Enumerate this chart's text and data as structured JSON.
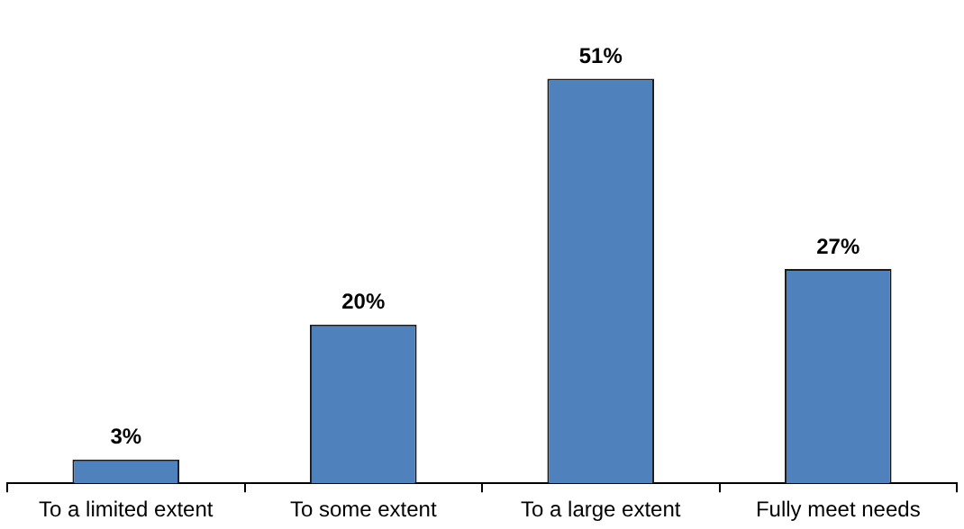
{
  "chart_data": {
    "type": "bar",
    "categories": [
      "To a limited extent",
      "To some extent",
      "To a large extent",
      "Fully meet needs"
    ],
    "values": [
      3,
      20,
      51,
      27
    ],
    "color": "#4f81bd",
    "value_labels": [
      "3%",
      "20%",
      "51%",
      "27%"
    ],
    "legend": false,
    "grid": false
  }
}
